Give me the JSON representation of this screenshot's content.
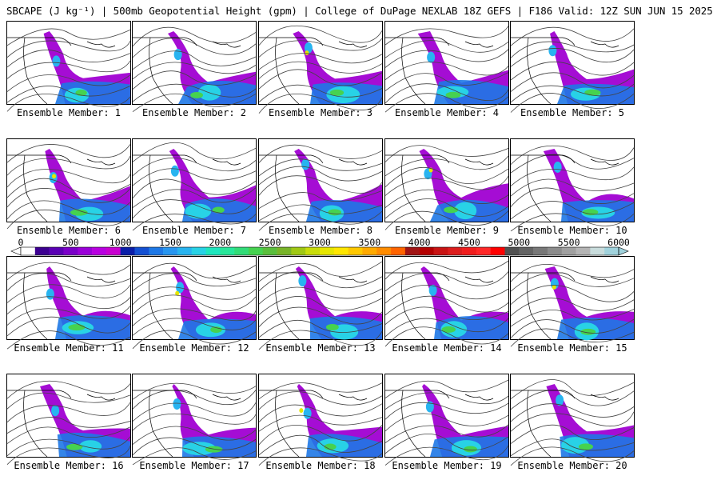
{
  "title": "SBCAPE (J kg⁻¹) | 500mb Geopotential Height (gpm) | College of DuPage NEXLAB 18Z GEFS | F186 Valid: 12Z SUN JUN 15 2025",
  "panels": [
    {
      "label": "Ensemble Member: 1"
    },
    {
      "label": "Ensemble Member: 2"
    },
    {
      "label": "Ensemble Member: 3"
    },
    {
      "label": "Ensemble Member: 4"
    },
    {
      "label": "Ensemble Member: 5"
    },
    {
      "label": "Ensemble Member: 6"
    },
    {
      "label": "Ensemble Member: 7"
    },
    {
      "label": "Ensemble Member: 8"
    },
    {
      "label": "Ensemble Member: 9"
    },
    {
      "label": "Ensemble Member: 10"
    },
    {
      "label": "Ensemble Member: 11"
    },
    {
      "label": "Ensemble Member: 12"
    },
    {
      "label": "Ensemble Member: 13"
    },
    {
      "label": "Ensemble Member: 14"
    },
    {
      "label": "Ensemble Member: 15"
    },
    {
      "label": "Ensemble Member: 16"
    },
    {
      "label": "Ensemble Member: 17"
    },
    {
      "label": "Ensemble Member: 18"
    },
    {
      "label": "Ensemble Member: 19"
    },
    {
      "label": "Ensemble Member: 20"
    }
  ],
  "colorbar": {
    "ticks": [
      "0",
      "500",
      "1000",
      "1500",
      "2000",
      "2500",
      "3000",
      "3500",
      "4000",
      "4500",
      "5000",
      "5500",
      "6000"
    ],
    "colors": [
      "#ffffff",
      "#3c0090",
      "#5a00b4",
      "#7a00c8",
      "#9a00d8",
      "#b800e0",
      "#c800d0",
      "#0a1ea8",
      "#1450d2",
      "#1e78e6",
      "#2896f0",
      "#28b4f0",
      "#28d2e6",
      "#1ee6be",
      "#28e69a",
      "#32dc78",
      "#46d250",
      "#5abe3c",
      "#78b428",
      "#a0c814",
      "#c8dc0a",
      "#e6e600",
      "#ffe600",
      "#ffc800",
      "#ffaa00",
      "#ff8c00",
      "#ff6400",
      "#a01414",
      "#b40000",
      "#c81414",
      "#dc1e1e",
      "#f01e1e",
      "#ff2828",
      "#ff0000",
      "#505050",
      "#646464",
      "#787878",
      "#8c8c8c",
      "#a0a0a0",
      "#b4b4b4",
      "#c8dcdc",
      "#a0d2dc"
    ]
  }
}
